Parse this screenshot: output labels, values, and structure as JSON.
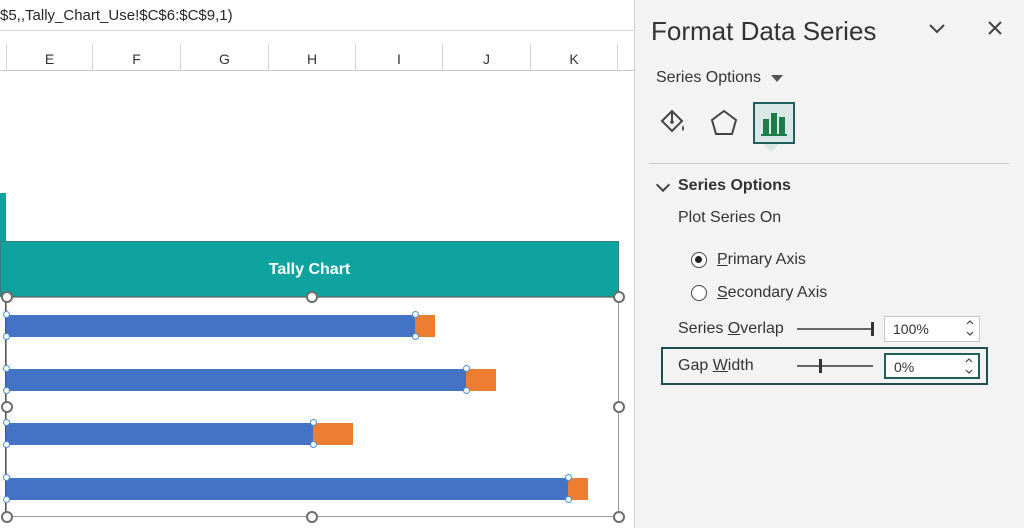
{
  "formula_bar": {
    "text": "$5,,Tally_Chart_Use!$C$6:$C$9,1)"
  },
  "columns": [
    "E",
    "F",
    "G",
    "H",
    "I",
    "J",
    "K"
  ],
  "chart": {
    "title": "Tally Chart",
    "title_bar_color": "#0fa3a0",
    "series_colors": {
      "blue": "#4472c4",
      "orange": "#ed7d31"
    }
  },
  "pane": {
    "title": "Format Data Series",
    "dropdown_icon": "chevron-down-icon",
    "close_icon": "close-icon",
    "series_options_menu": "Series Options",
    "tabs": [
      "fill-line-icon",
      "effects-icon",
      "series-options-icon"
    ],
    "section_title": "Series Options",
    "plot_series_on": "Plot Series On",
    "primary_axis": {
      "prefix": "",
      "accel": "P",
      "rest": "rimary Axis",
      "selected": true
    },
    "secondary_axis": {
      "prefix": "",
      "accel": "S",
      "rest": "econdary Axis",
      "selected": false
    },
    "series_overlap": {
      "prefix": "Series ",
      "accel": "O",
      "rest": "verlap",
      "value": "100%"
    },
    "gap_width": {
      "prefix": "Gap ",
      "accel": "W",
      "rest": "idth",
      "value": "0%"
    },
    "accent_color": "#1f5f5c"
  }
}
